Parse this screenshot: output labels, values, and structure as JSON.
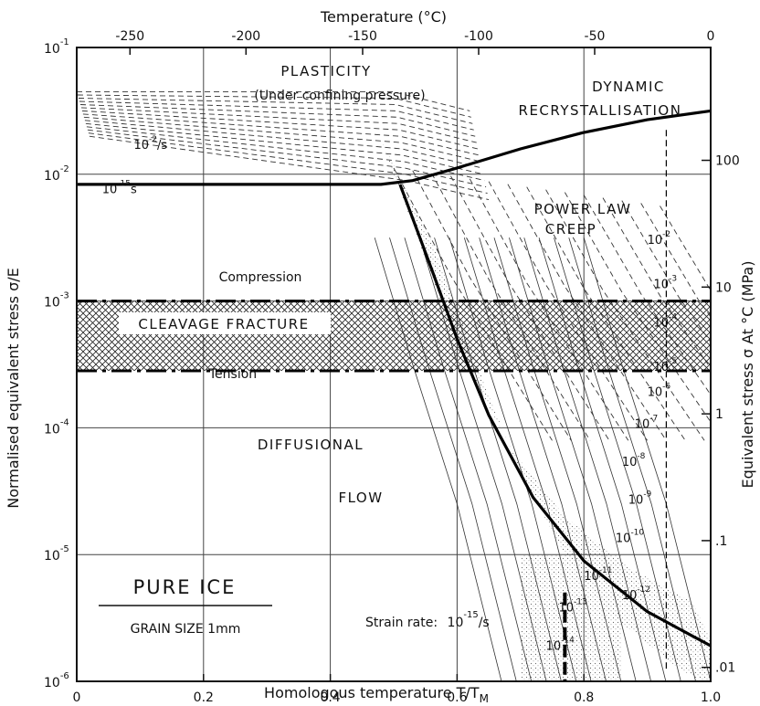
{
  "chart_data": {
    "type": "deformation-mechanism-map",
    "title": "PURE ICE",
    "subtitle": "GRAIN SIZE 1mm",
    "xlabel": "Homologous temperature T/T",
    "xlabel_sub": "M",
    "ylabel": "Normalised equivalent stress σ/E",
    "ylabel_right": "Equivalent stress σ At °C (MPa)",
    "xlabel_top": "Temperature (°C)",
    "x_range": [
      0,
      1.0
    ],
    "y_range": [
      1e-06,
      0.1
    ],
    "y_log": true,
    "grid": true,
    "x_ticks": [
      "0",
      "0.2",
      "0.4",
      "0.6",
      "0.8",
      "1.0"
    ],
    "x_tick_values": [
      0,
      0.2,
      0.4,
      0.6,
      0.8,
      1.0
    ],
    "y_ticks": [
      {
        "base": "10",
        "exp": "-1",
        "value": -1
      },
      {
        "base": "10",
        "exp": "-2",
        "value": -2
      },
      {
        "base": "10",
        "exp": "-3",
        "value": -3
      },
      {
        "base": "10",
        "exp": "-4",
        "value": -4
      },
      {
        "base": "10",
        "exp": "-5",
        "value": -5
      },
      {
        "base": "10",
        "exp": "-6",
        "value": -6
      }
    ],
    "top_ticks": [
      {
        "label": "-250",
        "t": 0.084
      },
      {
        "label": "-200",
        "t": 0.267
      },
      {
        "label": "-150",
        "t": 0.451
      },
      {
        "label": "-100",
        "t": 0.634
      },
      {
        "label": "-50",
        "t": 0.817
      },
      {
        "label": "0",
        "t": 1.0
      }
    ],
    "right_ticks": [
      {
        "label": "100",
        "log": -1.89
      },
      {
        "label": "10",
        "log": -2.89
      },
      {
        "label": "1",
        "log": -3.89
      },
      {
        "label": ".1",
        "log": -4.89
      },
      {
        "label": ".01",
        "log": -5.89
      }
    ],
    "regions": {
      "plasticity": "PLASTICITY",
      "plasticity_note": "(Under confining pressure)",
      "dynamic": "DYNAMIC",
      "recrystallisation": "RECRYSTALLISATION",
      "power_law": "POWER LAW",
      "creep": "CREEP",
      "cleavage": "CLEAVAGE   FRACTURE",
      "diffusional": "DIFFUSIONAL",
      "flow": "FLOW",
      "compression": "Compression",
      "tension": "Tension",
      "strain_rate_label": "Strain rate:",
      "strain_rate_base": "10",
      "strain_rate_exp": "-15",
      "strain_rate_unit": "/s"
    },
    "boundaries": {
      "plasticity_powerlaw": [
        [
          0.0,
          -2.08
        ],
        [
          0.48,
          -2.08
        ],
        [
          0.53,
          -2.05
        ],
        [
          0.6,
          -1.95
        ],
        [
          0.7,
          -1.8
        ],
        [
          0.8,
          -1.67
        ],
        [
          0.9,
          -1.57
        ],
        [
          1.0,
          -1.5
        ]
      ],
      "powerlaw_diffusional": [
        [
          0.51,
          -2.08
        ],
        [
          0.56,
          -2.75
        ],
        [
          0.6,
          -3.3
        ],
        [
          0.65,
          -3.9
        ],
        [
          0.72,
          -4.55
        ],
        [
          0.8,
          -5.05
        ],
        [
          0.9,
          -5.45
        ],
        [
          1.0,
          -5.72
        ]
      ],
      "compression_level": -3.0,
      "tension_level": -3.55,
      "transition_line": [
        [
          0.77,
          -5.3
        ],
        [
          0.77,
          -6.0
        ]
      ],
      "right_dashed": [
        [
          0.93,
          -1.65
        ],
        [
          0.93,
          -5.9
        ]
      ]
    },
    "strain_rate_contours": [
      {
        "base": "10",
        "exp": "-2",
        "unit": "/s"
      },
      {
        "base": "10",
        "exp": "-15",
        "unit": "s"
      },
      {
        "base": "10",
        "exp": "-2"
      },
      {
        "base": "10",
        "exp": "-3"
      },
      {
        "base": "10",
        "exp": "-4"
      },
      {
        "base": "10",
        "exp": "-5"
      },
      {
        "base": "10",
        "exp": "-6"
      },
      {
        "base": "10",
        "exp": "-7"
      },
      {
        "base": "10",
        "exp": "-8"
      },
      {
        "base": "10",
        "exp": "-9"
      },
      {
        "base": "10",
        "exp": "-10"
      },
      {
        "base": "10",
        "exp": "-11"
      },
      {
        "base": "10",
        "exp": "-12"
      },
      {
        "base": "10",
        "exp": "-13"
      },
      {
        "base": "10",
        "exp": "-14"
      }
    ]
  }
}
